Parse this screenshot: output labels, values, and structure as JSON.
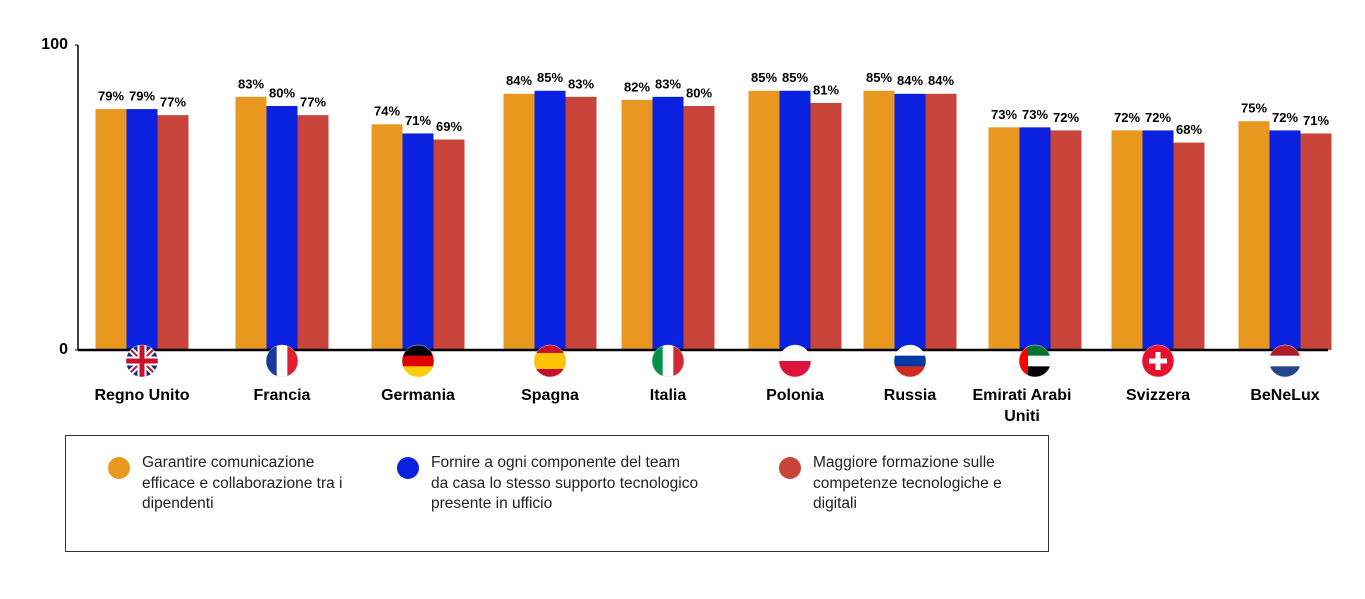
{
  "chart_data": {
    "type": "bar",
    "categories": [
      "Regno Unito",
      "Francia",
      "Germania",
      "Spagna",
      "Italia",
      "Polonia",
      "Russia",
      "Emirati Arabi Uniti",
      "Svizzera",
      "BeNeLux"
    ],
    "series": [
      {
        "name": "Garantire comunicazione efficace e collaborazione tra i dipendenti",
        "color": "#e8981f",
        "values": [
          79,
          83,
          74,
          84,
          82,
          85,
          85,
          73,
          72,
          75
        ],
        "value_labels": [
          "79%",
          "83%",
          "74%",
          "84%",
          "82%",
          "85%",
          "85%",
          "73%",
          "72%",
          "75%"
        ]
      },
      {
        "name": "Fornire a ogni componente del team da casa lo stesso supporto tecnologico presente in ufficio",
        "color": "#0a22e0",
        "values": [
          79,
          80,
          71,
          85,
          83,
          85,
          84,
          73,
          72,
          72
        ],
        "value_labels": [
          "79%",
          "80%",
          "71%",
          "85%",
          "83%",
          "85%",
          "84%",
          "73%",
          "72%",
          "72%"
        ]
      },
      {
        "name": "Maggiore formazione sulle competenze tecnologiche e digitali",
        "color": "#c8443a",
        "values": [
          77,
          77,
          69,
          83,
          80,
          81,
          84,
          72,
          68,
          71
        ],
        "value_labels": [
          "77%",
          "77%",
          "69%",
          "83%",
          "80%",
          "81%",
          "84%",
          "72%",
          "68%",
          "71%"
        ]
      }
    ],
    "ylim": [
      0,
      100
    ],
    "yticks": [
      0,
      100
    ]
  }
}
